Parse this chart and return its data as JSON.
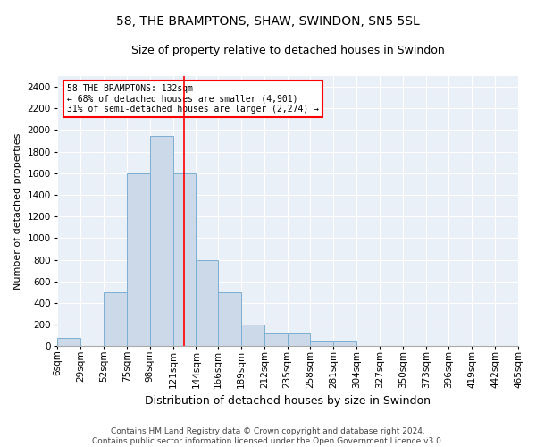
{
  "title": "58, THE BRAMPTONS, SHAW, SWINDON, SN5 5SL",
  "subtitle": "Size of property relative to detached houses in Swindon",
  "xlabel": "Distribution of detached houses by size in Swindon",
  "ylabel": "Number of detached properties",
  "footer_line1": "Contains HM Land Registry data © Crown copyright and database right 2024.",
  "footer_line2": "Contains public sector information licensed under the Open Government Licence v3.0.",
  "annotation_line1": "58 THE BRAMPTONS: 132sqm",
  "annotation_line2": "← 68% of detached houses are smaller (4,901)",
  "annotation_line3": "31% of semi-detached houses are larger (2,274) →",
  "property_size_sqm": 132,
  "bar_color": "#ccd9e8",
  "bar_edge_color": "#7bafd4",
  "redline_color": "red",
  "bg_color": "#eaf0f8",
  "categories": [
    "6sqm",
    "29sqm",
    "52sqm",
    "75sqm",
    "98sqm",
    "121sqm",
    "144sqm",
    "166sqm",
    "189sqm",
    "212sqm",
    "235sqm",
    "258sqm",
    "281sqm",
    "304sqm",
    "327sqm",
    "350sqm",
    "373sqm",
    "396sqm",
    "419sqm",
    "442sqm",
    "465sqm"
  ],
  "bin_edges": [
    6,
    29,
    52,
    75,
    98,
    121,
    144,
    166,
    189,
    212,
    235,
    258,
    281,
    304,
    327,
    350,
    373,
    396,
    419,
    442,
    465
  ],
  "bar_heights": [
    75,
    0,
    500,
    1600,
    1950,
    1600,
    800,
    500,
    200,
    120,
    120,
    50,
    50,
    0,
    0,
    0,
    0,
    0,
    0,
    0
  ],
  "ylim": [
    0,
    2500
  ],
  "yticks": [
    0,
    200,
    400,
    600,
    800,
    1000,
    1200,
    1400,
    1600,
    1800,
    2000,
    2200,
    2400
  ],
  "title_fontsize": 10,
  "subtitle_fontsize": 9,
  "ylabel_fontsize": 8,
  "xlabel_fontsize": 9,
  "tick_fontsize": 7.5,
  "annotation_fontsize": 7,
  "footer_fontsize": 6.5
}
